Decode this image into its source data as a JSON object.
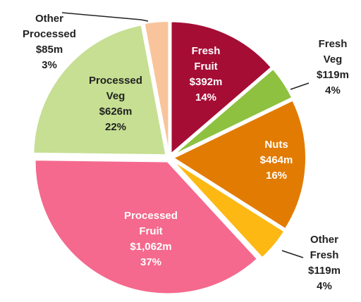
{
  "chart_data": {
    "type": "pie",
    "categories": [
      "Fresh Fruit",
      "Fresh Veg",
      "Nuts",
      "Other Fresh",
      "Processed Fruit",
      "Processed Veg",
      "Other Processed"
    ],
    "values": [
      392,
      119,
      464,
      119,
      1062,
      626,
      85
    ],
    "value_labels": [
      "$392m",
      "$119m",
      "$464m",
      "$119m",
      "$1,062m",
      "$626m",
      "$85m"
    ],
    "percents": [
      14,
      4,
      16,
      4,
      37,
      22,
      3
    ],
    "percent_labels": [
      "14%",
      "4%",
      "16%",
      "4%",
      "37%",
      "22%",
      "3%"
    ],
    "colors": [
      "#a50d35",
      "#8dc13f",
      "#e27b02",
      "#fdb813",
      "#f4698d",
      "#c6df92",
      "#f9c49b"
    ]
  }
}
